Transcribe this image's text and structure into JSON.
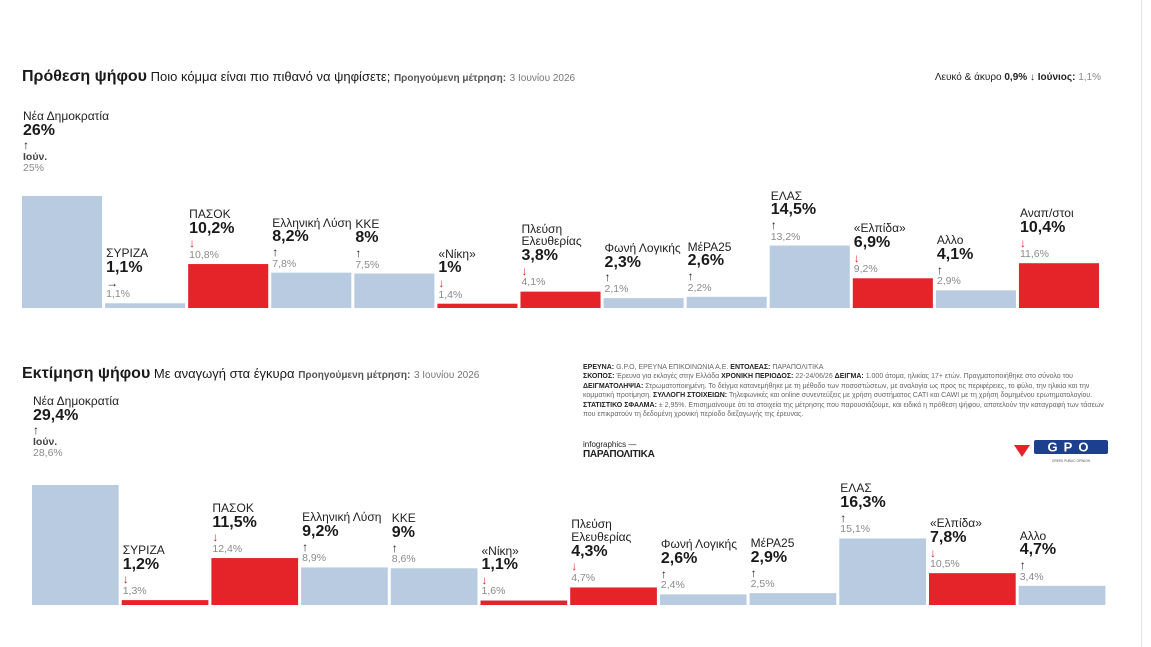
{
  "header1": {
    "title": "Πρόθεση ψήφου",
    "subtitle": "Ποιο κόμμα είναι πιο πιθανό να ψηφίσετε;",
    "prev_label": "Προηγούμενη μέτρηση:",
    "prev_date": "3 Ιουνίου 2026"
  },
  "blank_vote": {
    "label": "Λευκό & άκυρο",
    "value": "0,9%",
    "arrow": "↓",
    "prev_label": "Ιούνιος:",
    "prev_value": "1,1%"
  },
  "header2": {
    "title": "Εκτίμηση ψήφου",
    "subtitle": "Με αναγωγή στα έγκυρα",
    "prev_label": "Προηγούμενη μέτρηση:",
    "prev_date": "3 Ιουνίου 2026"
  },
  "colors": {
    "gray_bar": "#b9cbe0",
    "red_bar": "#e42428",
    "down_arrow": "#e42428"
  },
  "chart_data": [
    {
      "type": "bar",
      "prev_period_label": "Ιούν.",
      "categories": [
        "Νέα Δημοκρατία",
        "ΣΥΡΙΖΑ",
        "ΠΑΣΟΚ",
        "Ελληνική Λύση",
        "ΚΚΕ",
        "«Νίκη»",
        "Πλεύση Ελευθερίας",
        "Φωνή Λογικής",
        "ΜέΡΑ25",
        "ΕΛΑΣ",
        "«Ελπίδα»",
        "Αλλο",
        "Αναπ/στοι"
      ],
      "values": [
        26,
        1.1,
        10.2,
        8.2,
        8,
        1,
        3.8,
        2.3,
        2.6,
        14.5,
        6.9,
        4.1,
        10.4
      ],
      "value_labels": [
        "26%",
        "1,1%",
        "10,2%",
        "8,2%",
        "8%",
        "1%",
        "3,8%",
        "2,3%",
        "2,6%",
        "14,5%",
        "6,9%",
        "4,1%",
        "10,4%"
      ],
      "previous_labels": [
        "25%",
        "1,1%",
        "10,8%",
        "7,8%",
        "7,5%",
        "1,4%",
        "4,1%",
        "2,1%",
        "2,2%",
        "13,2%",
        "9,2%",
        "2,9%",
        "11,6%"
      ],
      "arrows": [
        "↑",
        "→",
        "↓",
        "↑",
        "↑",
        "↓",
        "↓",
        "↑",
        "↑",
        "↑",
        "↓",
        "↑",
        "↓"
      ],
      "bar_color": [
        "gray",
        "gray",
        "red",
        "gray",
        "gray",
        "red",
        "red",
        "gray",
        "gray",
        "gray",
        "red",
        "gray",
        "red"
      ],
      "ylim": [
        0,
        26
      ]
    },
    {
      "type": "bar",
      "prev_period_label": "Ιούν.",
      "categories": [
        "Νέα Δημοκρατία",
        "ΣΥΡΙΖΑ",
        "ΠΑΣΟΚ",
        "Ελληνική Λύση",
        "ΚΚΕ",
        "«Νίκη»",
        "Πλεύση Ελευθερίας",
        "Φωνή Λογικής",
        "ΜέΡΑ25",
        "ΕΛΑΣ",
        "«Ελπίδα»",
        "Αλλο"
      ],
      "values": [
        29.4,
        1.2,
        11.5,
        9.2,
        9,
        1.1,
        4.3,
        2.6,
        2.9,
        16.3,
        7.8,
        4.7
      ],
      "value_labels": [
        "29,4%",
        "1,2%",
        "11,5%",
        "9,2%",
        "9%",
        "1,1%",
        "4,3%",
        "2,6%",
        "2,9%",
        "16,3%",
        "7,8%",
        "4,7%"
      ],
      "previous_labels": [
        "28,6%",
        "1,3%",
        "12,4%",
        "8,9%",
        "8,6%",
        "1,6%",
        "4,7%",
        "2,4%",
        "2,5%",
        "15,1%",
        "10,5%",
        "3,4%"
      ],
      "arrows": [
        "↑",
        "↓",
        "↓",
        "↑",
        "↑",
        "↓",
        "↓",
        "↑",
        "↑",
        "↑",
        "↓",
        "↑"
      ],
      "bar_color": [
        "gray",
        "red",
        "red",
        "gray",
        "gray",
        "red",
        "red",
        "gray",
        "gray",
        "gray",
        "red",
        "gray"
      ],
      "ylim": [
        0,
        29.4
      ]
    }
  ],
  "source": {
    "l1_label": "ΕΡΕΥΝΑ:",
    "l1_text": "G.P.O, ΕΡΕΥΝΑ ΕΠΙΚΟΙΝΩΝΙΑ Α.Ε.",
    "l1_label2": "ΕΝΤΟΛΕΑΣ:",
    "l1_text2": "ΠΑΡΑΠΟΛΙΤΙΚΑ",
    "l2_label": "ΣΚΟΠΟΣ:",
    "l2_text": "Έρευνα για εκλογές στην Ελλάδα",
    "l2_label2": "ΧΡΟΝΙΚΗ ΠΕΡΙΟΔΟΣ:",
    "l2_text2": "22-24/06/26",
    "l2_label3": "ΔΕΙΓΜΑ:",
    "l2_text3": "1.000 άτομα, ηλικίας 17+ ετών. Πραγματοποιήθηκε στο σύνολο του",
    "l3_label": "ΔΕΙΓΜΑΤΟΛΗΨΙΑ:",
    "l3_text": "Στρωματοποιημένη. Το δείγμα κατανεμήθηκε με τη μέθοδο των ποσοστώσεων, με αναλογία ως προς τις περιφέρειες, το φύλο, την ηλικία και την κομματική προτίμηση.",
    "l4_label": "ΣΥΛΛΟΓΗ ΣΤΟΙΧΕΙΩΝ:",
    "l4_text": "Τηλεφωνικές και online συνεντεύξεις με χρήση συστήματος CATI και CAWI με τη χρήση δομημένου ερωτηματολογίου.",
    "l5_label": "ΣΤΑΤΙΣΤΙΚΟ ΣΦΑΛΜΑ:",
    "l5_text": "± 2,95%. Επισημαίνουμε ότι τα στοιχεία της μέτρησης που παρουσιάζουμε, και ειδικά η πρόθεση ψήφου, αποτελούν την καταγραφή των τάσεων που επικρατούν τη δεδομένη χρονική περίοδο διεξαγωγής της έρευνας."
  },
  "credit": {
    "infographics": "infographics —",
    "brand": "ΠΑΡΑΠΟΛΙΤΙΚΑ"
  },
  "logo": {
    "text": "GPO",
    "tagline": "GREEK PUBLIC OPINION"
  }
}
